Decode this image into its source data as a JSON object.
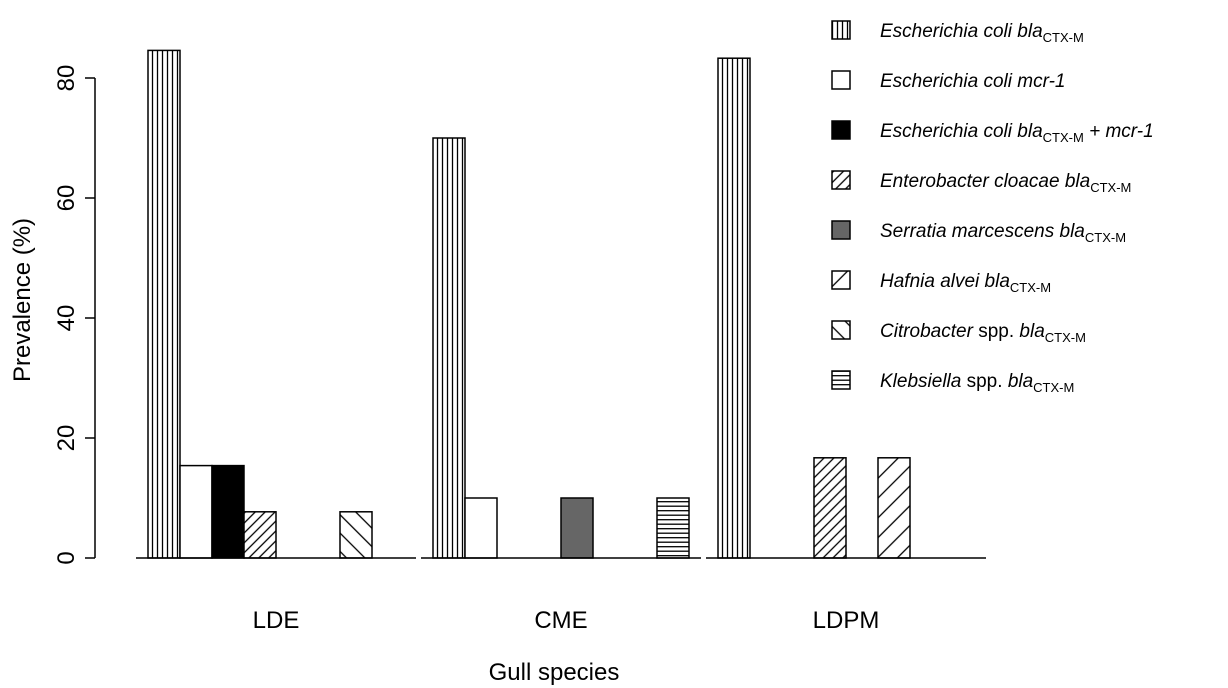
{
  "chart_data": {
    "type": "bar",
    "xlabel": "Gull species",
    "ylabel": "Prevalence (%)",
    "ylim": [
      0,
      85
    ],
    "yticks": [
      0,
      20,
      40,
      60,
      80
    ],
    "grid": false,
    "legend_position": "top-right",
    "categories": [
      "LDE",
      "CME",
      "LDPM"
    ],
    "series": [
      {
        "name": "Escherichia coli blaCTX-M",
        "pattern": "vertical",
        "values": [
          84.6,
          70,
          83.3
        ]
      },
      {
        "name": "Escherichia coli mcr-1",
        "pattern": "white",
        "values": [
          15.4,
          10,
          0
        ]
      },
      {
        "name": "Escherichia coli blaCTX-M + mcr-1",
        "pattern": "black",
        "values": [
          15.4,
          0,
          0
        ]
      },
      {
        "name": "Enterobacter cloacae blaCTX-M",
        "pattern": "diag-dense",
        "values": [
          7.7,
          0,
          16.7
        ]
      },
      {
        "name": "Serratia marcescens blaCTX-M",
        "pattern": "gray",
        "values": [
          0,
          10,
          0
        ]
      },
      {
        "name": "Hafnia alvei blaCTX-M",
        "pattern": "diag-sparse",
        "values": [
          0,
          0,
          16.7
        ]
      },
      {
        "name": "Citrobacter spp. blaCTX-M",
        "pattern": "diag-up",
        "values": [
          7.7,
          0,
          0
        ]
      },
      {
        "name": "Klebsiella spp. blaCTX-M",
        "pattern": "horizontal",
        "values": [
          0,
          10,
          0
        ]
      }
    ],
    "legend": [
      {
        "parts": [
          {
            "t": "Escherichia coli bla"
          },
          {
            "t": "CTX-M",
            "sub": true
          }
        ]
      },
      {
        "parts": [
          {
            "t": "Escherichia coli mcr-1"
          }
        ]
      },
      {
        "parts": [
          {
            "t": "Escherichia coli bla"
          },
          {
            "t": "CTX-M",
            "sub": true
          },
          {
            "t": " + mcr-1"
          }
        ]
      },
      {
        "parts": [
          {
            "t": "Enterobacter cloacae bla"
          },
          {
            "t": "CTX-M",
            "sub": true
          }
        ]
      },
      {
        "parts": [
          {
            "t": "Serratia marcescens bla"
          },
          {
            "t": "CTX-M",
            "sub": true
          }
        ]
      },
      {
        "parts": [
          {
            "t": "Hafnia alvei bla"
          },
          {
            "t": "CTX-M",
            "sub": true
          }
        ]
      },
      {
        "parts": [
          {
            "t": "Citrobacter"
          },
          {
            "t": " spp. ",
            "upright": true
          },
          {
            "t": "bla"
          },
          {
            "t": "CTX-M",
            "sub": true
          }
        ]
      },
      {
        "parts": [
          {
            "t": "Klebsiella"
          },
          {
            "t": " spp. ",
            "upright": true
          },
          {
            "t": "bla"
          },
          {
            "t": "CTX-M",
            "sub": true
          }
        ]
      }
    ]
  }
}
